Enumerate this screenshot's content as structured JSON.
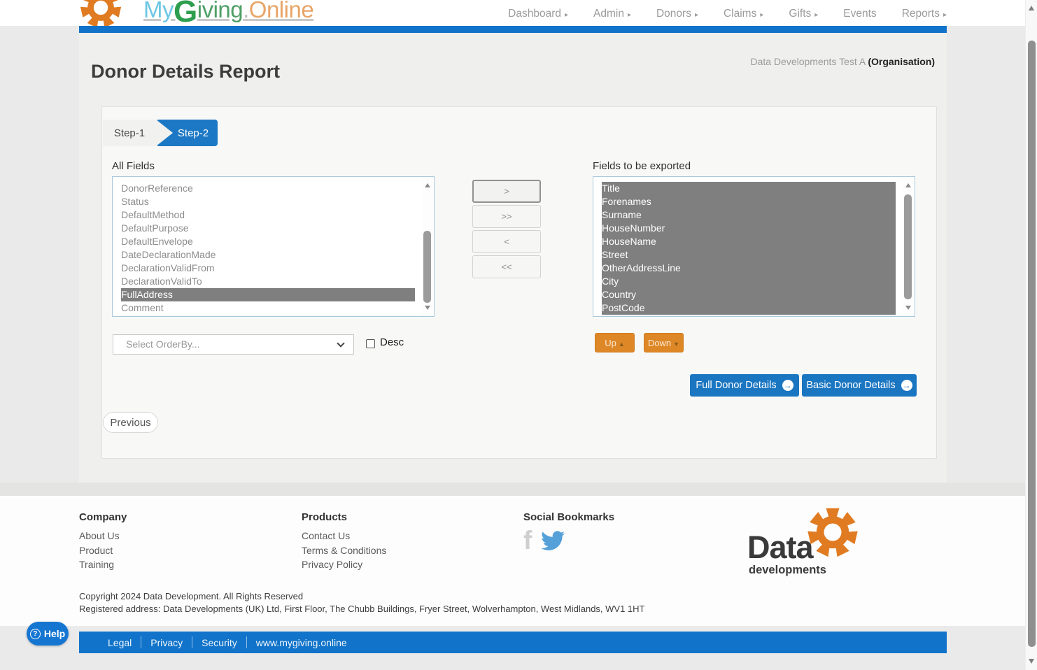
{
  "logo": {
    "my": "My",
    "g": "G",
    "iving": "iving",
    "dot": ".",
    "online": "Online"
  },
  "nav": {
    "items": [
      {
        "label": "Dashboard",
        "has_caret": true
      },
      {
        "label": "Admin",
        "has_caret": true
      },
      {
        "label": "Donors",
        "has_caret": true
      },
      {
        "label": "Claims",
        "has_caret": true
      },
      {
        "label": "Gifts",
        "has_caret": true
      },
      {
        "label": "Events",
        "has_caret": false
      },
      {
        "label": "Reports",
        "has_caret": true
      }
    ]
  },
  "header": {
    "title": "Donor Details Report",
    "org_name": "Data Developments Test A ",
    "org_type": "(Organisation)"
  },
  "steps": {
    "step1": "Step-1",
    "step2": "Step-2"
  },
  "all_fields": {
    "label": "All Fields",
    "items": [
      "DonorReference",
      "Status",
      "DefaultMethod",
      "DefaultPurpose",
      "DefaultEnvelope",
      "DateDeclarationMade",
      "DeclarationValidFrom",
      "DeclarationValidTo",
      "FullAddress",
      "Comment"
    ],
    "selected": "FullAddress"
  },
  "transfer": {
    "move_right": ">",
    "move_all_right": ">>",
    "move_left": "<",
    "move_all_left": "<<"
  },
  "export_fields": {
    "label": "Fields to be exported",
    "items": [
      "Title",
      "Forenames",
      "Surname",
      "HouseNumber",
      "HouseName",
      "Street",
      "OtherAddressLine",
      "City",
      "Country",
      "PostCode"
    ]
  },
  "order": {
    "select_value": "Select OrderBy...",
    "desc_label": "Desc"
  },
  "reorder": {
    "up": "Up",
    "up_icon": "▲",
    "down": "Down",
    "down_icon": "▼"
  },
  "actions": {
    "full": "Full Donor Details",
    "basic": "Basic Donor Details",
    "arrow": "→",
    "previous": "Previous"
  },
  "footer": {
    "company": {
      "heading": "Company",
      "links": [
        "About Us",
        "Product",
        "Training"
      ]
    },
    "products": {
      "heading": "Products",
      "links": [
        "Contact Us",
        "Terms & Conditions",
        "Privacy Policy"
      ]
    },
    "social": {
      "heading": "Social Bookmarks",
      "icons": [
        "facebook-icon",
        "twitter-icon"
      ]
    },
    "brand": {
      "name": "Data",
      "sub": "developments"
    },
    "copyright": "Copyright 2024 Data Development. All Rights Reserved",
    "address": "Registered address: Data Developments (UK) Ltd, First Floor, The Chubb Buildings, Fryer Street, Wolverhampton, West Midlands, WV1 1HT",
    "legal_links": [
      "Legal",
      "Privacy",
      "Security",
      "www.mygiving.online"
    ]
  },
  "help": {
    "label": "Help",
    "icon": "?"
  },
  "colors": {
    "accent_blue": "#1173c9",
    "button_blue": "#1b76c2",
    "step_blue": "#1c78c4",
    "orange": "#dd8727",
    "logo_orange": "#e07b22",
    "selection_gray": "#7f7f7f",
    "twitter_blue": "#55a0d8"
  }
}
